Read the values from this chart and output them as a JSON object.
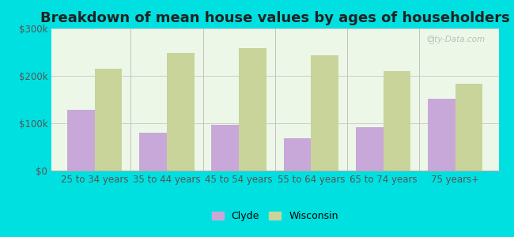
{
  "title": "Breakdown of mean house values by ages of householders",
  "categories": [
    "25 to 34 years",
    "35 to 44 years",
    "45 to 54 years",
    "55 to 64 years",
    "65 to 74 years",
    "75 years+"
  ],
  "clyde_values": [
    128000,
    80000,
    97000,
    68000,
    92000,
    152000
  ],
  "wisconsin_values": [
    215000,
    248000,
    258000,
    243000,
    210000,
    183000
  ],
  "clyde_color": "#c8a8d8",
  "wisconsin_color": "#c8d49a",
  "background_color": "#00e0e0",
  "plot_bg_color": "#edf7e8",
  "ylim": [
    0,
    300000
  ],
  "yticks": [
    0,
    100000,
    200000,
    300000
  ],
  "ytick_labels": [
    "$0",
    "$100k",
    "$200k",
    "$300k"
  ],
  "legend_labels": [
    "Clyde",
    "Wisconsin"
  ],
  "title_fontsize": 13,
  "tick_fontsize": 8.5,
  "legend_fontsize": 9,
  "bar_width": 0.38,
  "watermark_text": "City-Data.com"
}
